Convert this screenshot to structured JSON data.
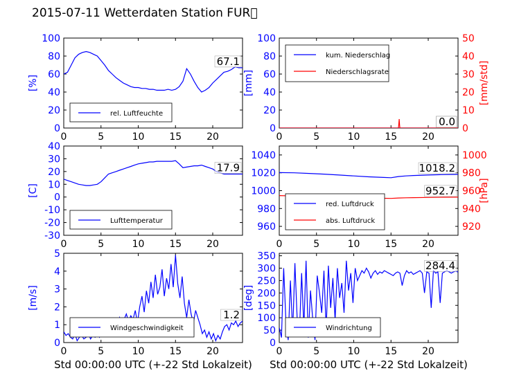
{
  "page": {
    "title": "2015-07-11 Wetterdaten Station FUR\u0000"
  },
  "colors": {
    "blue": "#0000ff",
    "red": "#ff0000",
    "black": "#000000"
  },
  "chart_data": [
    {
      "id": "humidity",
      "type": "line",
      "ylabel": "[%]",
      "xlabel": "",
      "xlim": [
        0,
        24
      ],
      "ylim": [
        0,
        100
      ],
      "xticks": [
        0,
        5,
        10,
        15,
        20
      ],
      "yticks": [
        0,
        20,
        40,
        60,
        80,
        100
      ],
      "annotation": "67.1",
      "legend_position": "lower-left",
      "series": [
        {
          "name": "rel. Luftfeuchte",
          "color": "#0000ff",
          "x": [
            0,
            0.5,
            1,
            1.5,
            2,
            2.5,
            3,
            3.5,
            4,
            4.5,
            5,
            5.5,
            6,
            6.5,
            7,
            7.5,
            8,
            8.5,
            9,
            9.5,
            10,
            10.5,
            11,
            11.5,
            12,
            12.5,
            13,
            13.5,
            14,
            14.5,
            15,
            15.5,
            16,
            16.5,
            17,
            17.5,
            18,
            18.5,
            19,
            19.5,
            20,
            20.5,
            21,
            21.5,
            22,
            22.5,
            23,
            23.5,
            24
          ],
          "y": [
            60,
            62,
            70,
            78,
            82,
            84,
            85,
            84,
            82,
            80,
            75,
            70,
            64,
            60,
            56,
            53,
            50,
            48,
            46,
            45,
            45,
            44,
            44,
            43,
            43,
            42,
            42,
            42,
            43,
            42,
            43,
            46,
            52,
            66,
            60,
            52,
            45,
            40,
            42,
            45,
            50,
            54,
            58,
            62,
            63,
            65,
            68,
            67,
            67
          ]
        }
      ]
    },
    {
      "id": "precipitation",
      "type": "line",
      "ylabel": "[mm]",
      "ylabel_right": "[mm/std]",
      "xlabel": "",
      "xlim": [
        0,
        24
      ],
      "ylim": [
        0,
        100
      ],
      "ylim_right": [
        0,
        50
      ],
      "xticks": [
        0,
        5,
        10,
        15,
        20
      ],
      "yticks": [
        0,
        20,
        40,
        60,
        80,
        100
      ],
      "yticks_right": [
        0,
        10,
        20,
        30,
        40,
        50
      ],
      "annotation": "0.0",
      "annotation_right": "0.0",
      "legend_position": "upper-left",
      "series": [
        {
          "name": "kum. Niederschlag",
          "color": "#0000ff",
          "axis": "left",
          "x": [
            0,
            24
          ],
          "y": [
            0,
            0
          ]
        },
        {
          "name": "Niederschlagsrate",
          "color": "#ff0000",
          "axis": "right",
          "x": [
            0,
            16.0,
            16.05,
            16.1,
            16.15,
            16.2,
            24
          ],
          "y": [
            0,
            0,
            2,
            5,
            2,
            0,
            0
          ]
        }
      ]
    },
    {
      "id": "temperature",
      "type": "line",
      "ylabel": "[C]",
      "xlabel": "",
      "xlim": [
        0,
        24
      ],
      "ylim": [
        -30,
        40
      ],
      "xticks": [
        0,
        5,
        10,
        15,
        20
      ],
      "yticks": [
        -30,
        -20,
        -10,
        0,
        10,
        20,
        30,
        40
      ],
      "annotation": "17.9",
      "legend_position": "lower-left",
      "series": [
        {
          "name": "Lufttemperatur",
          "color": "#0000ff",
          "x": [
            0,
            0.5,
            1,
            1.5,
            2,
            2.5,
            3,
            3.5,
            4,
            4.5,
            5,
            5.5,
            6,
            6.5,
            7,
            7.5,
            8,
            8.5,
            9,
            9.5,
            10,
            10.5,
            11,
            11.5,
            12,
            12.5,
            13,
            13.5,
            14,
            14.5,
            15,
            15.5,
            16,
            16.5,
            17,
            17.5,
            18,
            18.5,
            19,
            19.5,
            20,
            20.5,
            21,
            21.5,
            22,
            22.5,
            23,
            23.5,
            24
          ],
          "y": [
            14,
            13,
            12,
            11,
            10,
            9.5,
            9,
            9,
            9.5,
            10,
            12,
            15,
            18,
            19,
            20,
            21,
            22,
            23,
            24,
            25,
            26,
            26.5,
            27,
            27.5,
            27.5,
            28,
            28,
            28,
            28,
            28,
            28.5,
            26,
            23,
            23.5,
            24,
            24.5,
            24.5,
            25,
            24,
            23,
            22,
            20,
            19,
            18,
            18,
            18,
            18,
            18,
            18
          ]
        }
      ]
    },
    {
      "id": "pressure",
      "type": "line",
      "ylabel": "",
      "ylabel_right": "[hPa]",
      "xlabel": "",
      "xlim": [
        0,
        24
      ],
      "ylim": [
        950,
        1050
      ],
      "ylim_right": [
        910,
        1010
      ],
      "xticks": [
        0,
        5,
        10,
        15,
        20
      ],
      "yticks": [
        960,
        980,
        1000,
        1020,
        1040
      ],
      "yticks_right": [
        920,
        940,
        960,
        980,
        1000
      ],
      "annotation": "1018.2",
      "annotation_right": "952.7",
      "legend_position": "lower-left",
      "series": [
        {
          "name": "red. Luftdruck",
          "color": "#0000ff",
          "axis": "left",
          "x": [
            0,
            2,
            4,
            6,
            8,
            10,
            12,
            14,
            15,
            16,
            17,
            18,
            20,
            22,
            24
          ],
          "y": [
            1020.2,
            1020,
            1019.3,
            1018.5,
            1017.5,
            1016.5,
            1015.5,
            1014.8,
            1014.5,
            1015.8,
            1016.5,
            1017,
            1017.5,
            1018,
            1018.2
          ]
        },
        {
          "name": "abs. Luftdruck",
          "color": "#ff0000",
          "axis": "right",
          "x": [
            0,
            2,
            4,
            6,
            8,
            10,
            12,
            14,
            15,
            16,
            17,
            18,
            20,
            22,
            24
          ],
          "y": [
            954.5,
            954,
            953.5,
            953,
            952.5,
            952.3,
            952,
            951.5,
            951.3,
            951.8,
            952,
            952.2,
            952.4,
            952.6,
            952.7
          ]
        }
      ]
    },
    {
      "id": "windspeed",
      "type": "line",
      "ylabel": "[m/s]",
      "xlabel": "Std 00:00:00 UTC (+-22 Std Lokalzeit)",
      "xlim": [
        0,
        24
      ],
      "ylim": [
        0,
        5
      ],
      "xticks": [
        0,
        5,
        10,
        15,
        20
      ],
      "yticks": [
        0,
        1,
        2,
        3,
        4,
        5
      ],
      "annotation": "1.2",
      "legend_position": "lower-left",
      "series": [
        {
          "name": "Windgeschwindigkeit",
          "color": "#0000ff",
          "x": [
            0,
            0.3,
            0.6,
            0.9,
            1.2,
            1.5,
            1.8,
            2.1,
            2.4,
            2.7,
            3.0,
            3.3,
            3.6,
            3.9,
            4.2,
            4.5,
            4.8,
            5.1,
            5.4,
            5.7,
            6.0,
            6.3,
            6.6,
            6.9,
            7.2,
            7.5,
            7.8,
            8.1,
            8.4,
            8.7,
            9.0,
            9.3,
            9.6,
            9.9,
            10.2,
            10.5,
            10.8,
            11.1,
            11.4,
            11.7,
            12.0,
            12.3,
            12.6,
            12.9,
            13.2,
            13.5,
            13.8,
            14.1,
            14.4,
            14.7,
            15.0,
            15.3,
            15.6,
            15.9,
            16.2,
            16.5,
            16.8,
            17.1,
            17.4,
            17.7,
            18.0,
            18.3,
            18.6,
            18.9,
            19.2,
            19.5,
            19.8,
            20.1,
            20.4,
            20.7,
            21.0,
            21.3,
            21.6,
            21.9,
            22.2,
            22.5,
            22.8,
            23.1,
            23.4,
            23.7,
            24.0
          ],
          "y": [
            0.6,
            0.4,
            0.5,
            0.3,
            0.2,
            0.5,
            0.1,
            0.3,
            0.4,
            0.2,
            0.3,
            0.5,
            0.2,
            0.4,
            0.3,
            0.5,
            0.3,
            0.6,
            0.8,
            0.5,
            0.9,
            1.1,
            0.7,
            1.2,
            0.9,
            1.4,
            1.0,
            1.3,
            1.6,
            1.2,
            1.5,
            1.3,
            1.8,
            1.1,
            2.0,
            2.6,
            1.7,
            2.9,
            2.2,
            3.4,
            2.5,
            3.8,
            2.7,
            3.1,
            4.1,
            2.6,
            3.6,
            3.0,
            4.4,
            3.1,
            4.9,
            3.3,
            2.5,
            3.7,
            2.2,
            1.4,
            2.4,
            1.6,
            1.1,
            1.8,
            1.4,
            1.0,
            0.5,
            0.7,
            0.3,
            0.6,
            0.2,
            0.5,
            0.1,
            0.4,
            0.2,
            0.6,
            0.9,
            1.0,
            0.7,
            1.1,
            1.0,
            1.2,
            0.9,
            1.1,
            1.2
          ]
        }
      ]
    },
    {
      "id": "winddirection",
      "type": "line",
      "ylabel": "[deg]",
      "xlabel": "Std 00:00:00 UTC (+-22 Std Lokalzeit)",
      "xlim": [
        0,
        24
      ],
      "ylim": [
        0,
        360
      ],
      "xticks": [
        0,
        5,
        10,
        15,
        20
      ],
      "yticks": [
        0,
        50,
        100,
        150,
        200,
        250,
        300,
        350
      ],
      "annotation": "284.4",
      "legend_position": "lower-left",
      "series": [
        {
          "name": "Windrichtung",
          "color": "#0000ff",
          "x": [
            0,
            0.3,
            0.6,
            0.9,
            1.2,
            1.5,
            1.8,
            2.1,
            2.4,
            2.7,
            3.0,
            3.3,
            3.6,
            3.9,
            4.2,
            4.5,
            4.8,
            5.1,
            5.4,
            5.7,
            6.0,
            6.3,
            6.6,
            6.9,
            7.2,
            7.5,
            7.8,
            8.1,
            8.4,
            8.7,
            9.0,
            9.3,
            9.6,
            9.9,
            10.2,
            10.5,
            10.8,
            11.1,
            11.4,
            11.7,
            12.0,
            12.3,
            12.6,
            12.9,
            13.2,
            13.5,
            13.8,
            14.1,
            14.4,
            14.7,
            15.0,
            15.3,
            15.6,
            15.9,
            16.2,
            16.5,
            16.8,
            17.1,
            17.4,
            17.7,
            18.0,
            18.3,
            18.6,
            18.9,
            19.2,
            19.5,
            19.8,
            20.1,
            20.4,
            20.7,
            21.0,
            21.3,
            21.6,
            21.9,
            22.2,
            22.5,
            22.8,
            23.1,
            23.4,
            23.7,
            24.0
          ],
          "y": [
            60,
            20,
            300,
            80,
            10,
            250,
            40,
            320,
            100,
            30,
            280,
            60,
            330,
            20,
            210,
            90,
            10,
            270,
            200,
            120,
            290,
            50,
            310,
            140,
            260,
            90,
            300,
            180,
            240,
            120,
            330,
            210,
            280,
            160,
            300,
            250,
            270,
            290,
            280,
            300,
            285,
            260,
            280,
            290,
            275,
            285,
            280,
            290,
            285,
            280,
            275,
            270,
            280,
            285,
            280,
            230,
            270,
            290,
            280,
            285,
            275,
            280,
            285,
            290,
            280,
            200,
            285,
            280,
            140,
            290,
            280,
            285,
            160,
            280,
            285,
            290,
            285,
            280,
            285,
            288,
            284
          ]
        }
      ]
    }
  ]
}
